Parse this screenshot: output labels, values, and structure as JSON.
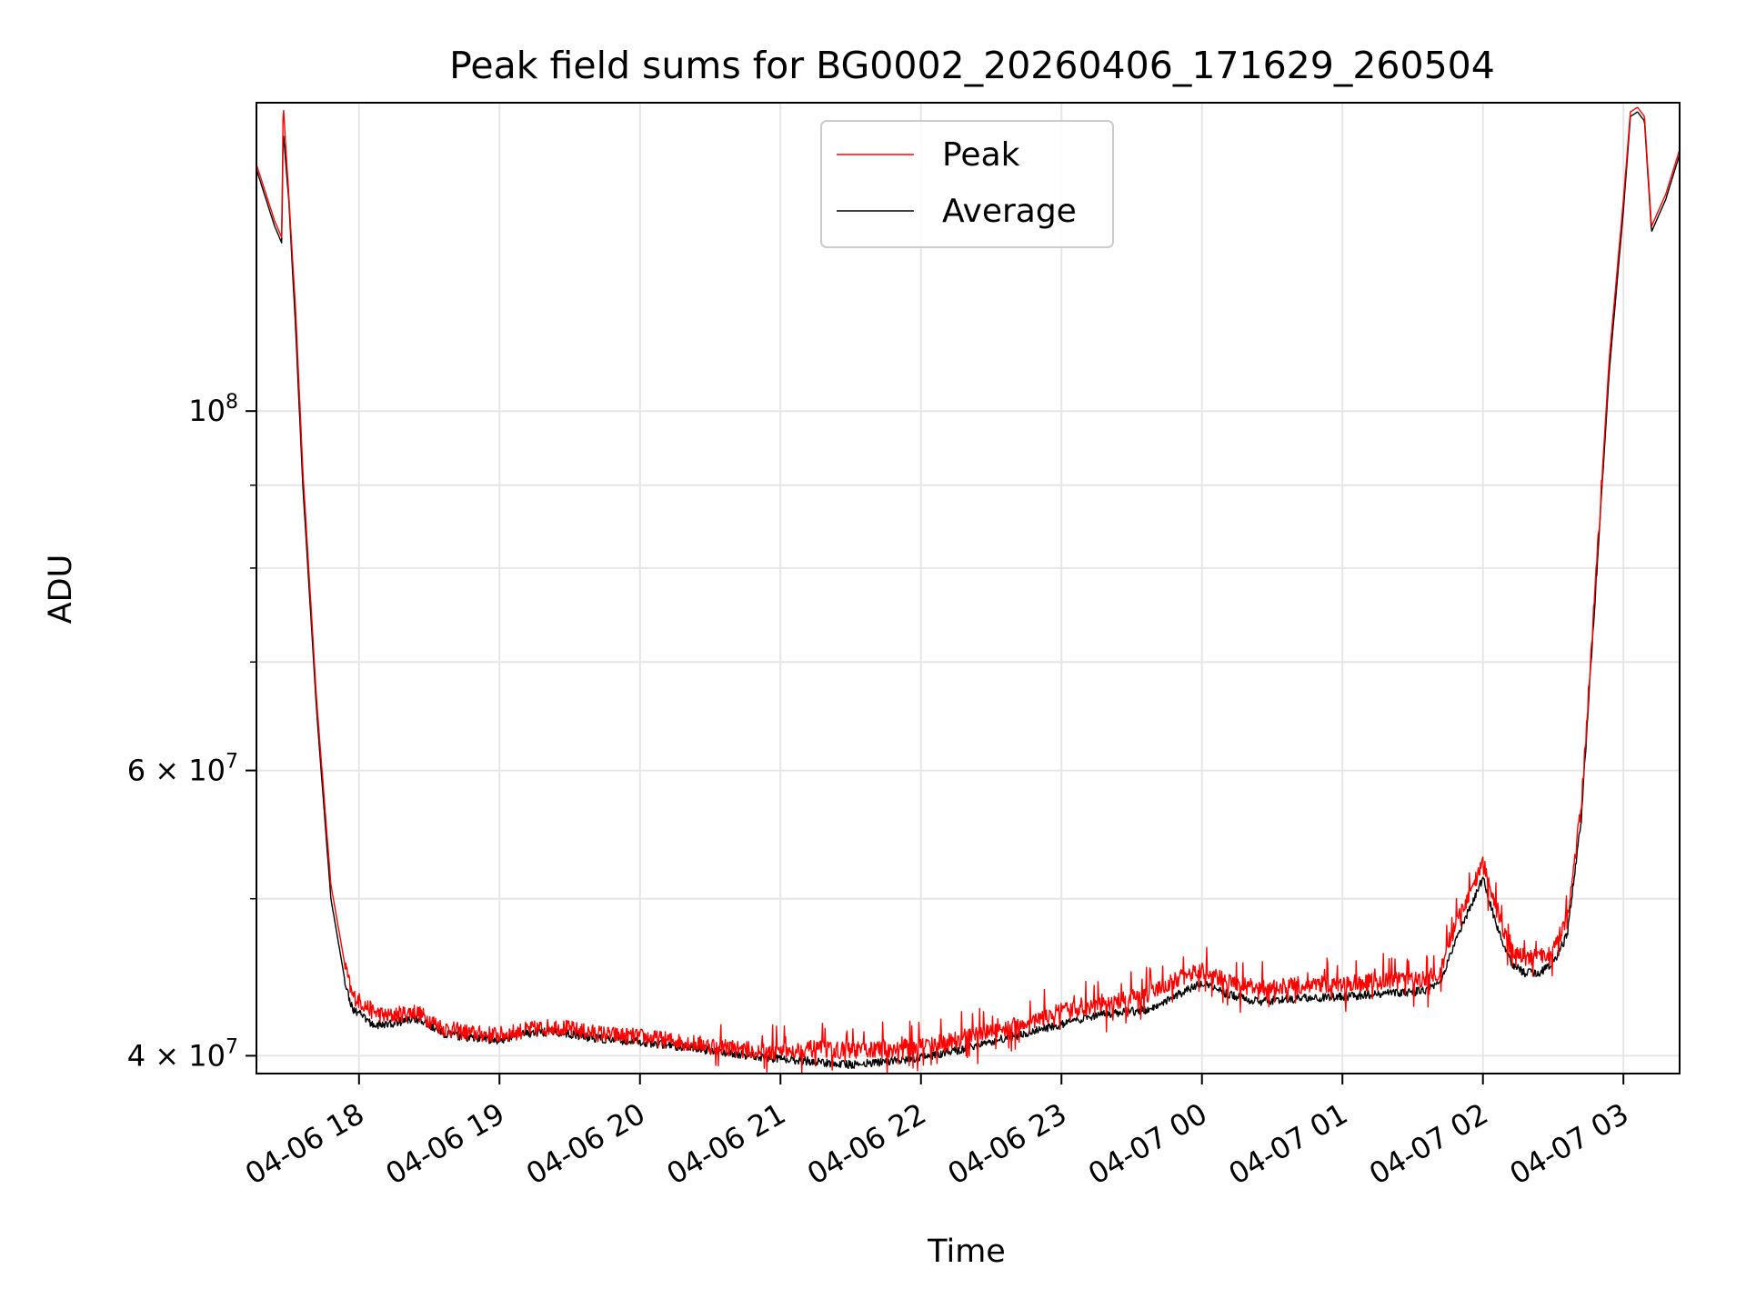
{
  "chart_data": {
    "type": "line",
    "title": "Peak field sums for BG0002_20260406_171629_260504",
    "xlabel": "Time",
    "ylabel": "ADU",
    "yscale": "log",
    "grid": true,
    "legend_position": "top-center",
    "xlim_hours": [
      17.27,
      27.4
    ],
    "ylim": [
      39000000,
      155000000
    ],
    "x_ticks": [
      {
        "hour": 18,
        "label": "04-06 18"
      },
      {
        "hour": 19,
        "label": "04-06 19"
      },
      {
        "hour": 20,
        "label": "04-06 20"
      },
      {
        "hour": 21,
        "label": "04-06 21"
      },
      {
        "hour": 22,
        "label": "04-06 22"
      },
      {
        "hour": 23,
        "label": "04-06 23"
      },
      {
        "hour": 24,
        "label": "04-07 00"
      },
      {
        "hour": 25,
        "label": "04-07 01"
      },
      {
        "hour": 26,
        "label": "04-07 02"
      },
      {
        "hour": 27,
        "label": "04-07 03"
      }
    ],
    "y_major_ticks": [
      {
        "value": 40000000,
        "mantissa": "4",
        "exponent": "7"
      },
      {
        "value": 60000000,
        "mantissa": "6",
        "exponent": "7"
      },
      {
        "value": 100000000,
        "mantissa": "",
        "exponent": "8"
      }
    ],
    "y_minor_grid": [
      50000000,
      70000000,
      80000000,
      90000000
    ],
    "series": [
      {
        "name": "Peak",
        "color": "#ff0000",
        "x_hours": [
          17.27,
          17.4,
          17.45,
          17.46,
          17.5,
          17.55,
          17.6,
          17.7,
          17.8,
          17.9,
          17.95,
          18.1,
          18.2,
          18.4,
          18.6,
          18.8,
          19.0,
          19.2,
          19.4,
          19.6,
          19.8,
          20.0,
          20.3,
          20.6,
          20.9,
          21.2,
          21.5,
          21.8,
          22.1,
          22.4,
          22.7,
          23.0,
          23.3,
          23.6,
          23.8,
          24.0,
          24.2,
          24.4,
          24.7,
          25.0,
          25.3,
          25.5,
          25.6,
          25.7,
          25.8,
          26.0,
          26.1,
          26.2,
          26.3,
          26.4,
          26.5,
          26.6,
          26.7,
          26.8,
          26.9,
          27.0,
          27.05,
          27.1,
          27.15,
          27.2,
          27.25,
          27.3,
          27.4
        ],
        "values": [
          142000000,
          131000000,
          128000000,
          155000000,
          136000000,
          115000000,
          92000000,
          66000000,
          51000000,
          45500000,
          43600000,
          42600000,
          42300000,
          42600000,
          41600000,
          41300000,
          41200000,
          41500000,
          41700000,
          41400000,
          41200000,
          41100000,
          40800000,
          40500000,
          40200000,
          40400000,
          40300000,
          40400000,
          40700000,
          41200000,
          41800000,
          42600000,
          43000000,
          43600000,
          44500000,
          45200000,
          44400000,
          44000000,
          44200000,
          44300000,
          44500000,
          44600000,
          44600000,
          45200000,
          48000000,
          52500000,
          49000000,
          46500000,
          46000000,
          46000000,
          46500000,
          48500000,
          57000000,
          78000000,
          108000000,
          135000000,
          153000000,
          154000000,
          152000000,
          130000000,
          133000000,
          136000000,
          145000000
        ]
      },
      {
        "name": "Average",
        "color": "#000000",
        "x_hours": [
          17.27,
          17.4,
          17.45,
          17.46,
          17.5,
          17.55,
          17.6,
          17.7,
          17.8,
          17.9,
          17.95,
          18.1,
          18.2,
          18.4,
          18.6,
          18.8,
          19.0,
          19.2,
          19.4,
          19.6,
          19.8,
          20.0,
          20.3,
          20.6,
          20.9,
          21.2,
          21.5,
          21.8,
          22.1,
          22.4,
          22.7,
          23.0,
          23.3,
          23.6,
          23.8,
          24.0,
          24.2,
          24.4,
          24.7,
          25.0,
          25.3,
          25.5,
          25.6,
          25.7,
          25.8,
          26.0,
          26.1,
          26.2,
          26.3,
          26.4,
          26.5,
          26.6,
          26.7,
          26.8,
          26.9,
          27.0,
          27.05,
          27.1,
          27.15,
          27.2,
          27.25,
          27.3,
          27.4
        ],
        "values": [
          141000000,
          130000000,
          127000000,
          149000000,
          135000000,
          112000000,
          90000000,
          65000000,
          50000000,
          44500000,
          42800000,
          41800000,
          41800000,
          42200000,
          41300000,
          41000000,
          40900000,
          41300000,
          41400000,
          41100000,
          40900000,
          40800000,
          40500000,
          40200000,
          39900000,
          39700000,
          39500000,
          39700000,
          40000000,
          40600000,
          41200000,
          41800000,
          42400000,
          42700000,
          43500000,
          44400000,
          43600000,
          43200000,
          43400000,
          43500000,
          43700000,
          43800000,
          43900000,
          44400000,
          47000000,
          51500000,
          48000000,
          45600000,
          45000000,
          45000000,
          45600000,
          47500000,
          56000000,
          77000000,
          106000000,
          133000000,
          152000000,
          153000000,
          151000000,
          129000000,
          132000000,
          135000000,
          144000000
        ]
      }
    ]
  }
}
